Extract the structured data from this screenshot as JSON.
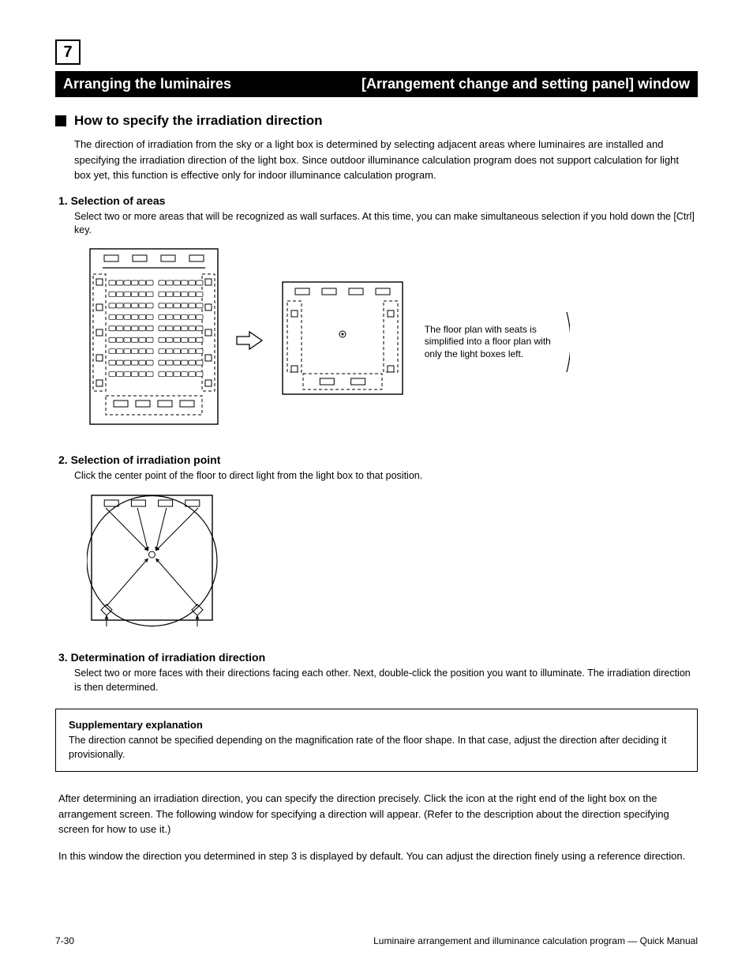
{
  "chapter_number": "7",
  "bar_left": "Arranging the luminaires",
  "bar_right": "[Arrangement change and setting panel] window",
  "section_title": "How to specify the irradiation direction",
  "intro_text": "The direction of irradiation from the sky or a light box is determined by selecting adjacent areas where luminaires are installed and specifying the irradiation direction of the light box. Since outdoor illuminance calculation program does not support calculation for light box yet, this function is effective only for indoor illuminance calculation program.",
  "step1_label": "1. Selection of areas",
  "step1_desc": "Select two or more areas that will be recognized as wall surfaces. At this time, you can make simultaneous selection if you hold down the [Ctrl] key.",
  "step2_label": "2. Selection of irradiation point",
  "step2_desc": "Click the center point of the floor to direct light from the light box to that position.",
  "step3_label": "3. Determination of irradiation direction",
  "step3_desc": "Select two or more faces with their directions facing each other. Next, double-click the position you want to illuminate. The irradiation direction is then determined.",
  "note_title": "Supplementary explanation",
  "note_body": "The direction cannot be specified depending on the magnification rate of the floor shape. In that case, adjust the direction after deciding it provisionally.",
  "post_text_1": "After determining an irradiation direction, you can specify the direction precisely. Click the icon at the right end of the light box on the arrangement screen. The following window for specifying a direction will appear. (Refer to the description about the direction specifying screen for how to use it.)",
  "post_text_2": "In this window the direction you determined in step 3 is displayed by default. You can adjust the direction finely using a reference direction.",
  "arrow_annot": "The floor plan with seats is simplified into a floor plan with only the light boxes left.",
  "footer_left": "7-30",
  "footer_right": "Luminaire arrangement and illuminance calculation program — Quick Manual",
  "diagram1": {
    "type": "floorplan-detailed",
    "outer_w": 170,
    "outer_h": 230,
    "bg": "#ffffff",
    "stroke": "#000000",
    "dashed_stroke": "#000000",
    "top_luminaires": 4,
    "side_luminaires_each": 5,
    "bottom_luminaires": 4,
    "seat_rows": 9,
    "seat_cols_per_side": 6
  },
  "arrow_between": {
    "width": 34,
    "height": 26,
    "fill": "#ffffff",
    "stroke": "#000000"
  },
  "diagram2": {
    "type": "floorplan-simplified",
    "outer_w": 160,
    "outer_h": 150,
    "bg": "#ffffff",
    "stroke": "#000000",
    "top_luminaires": 4,
    "side_luminaires_each": 2,
    "bottom_luminaires": 2,
    "center_marker": true
  },
  "diagram3": {
    "type": "floorplan-irradiation",
    "outer_w": 165,
    "outer_h": 170,
    "bg": "#ffffff",
    "stroke": "#000000",
    "circle_stroke": "#000000",
    "top_luminaires": 4,
    "bottom_square_luminaires": 2,
    "arrow_count": 6
  }
}
